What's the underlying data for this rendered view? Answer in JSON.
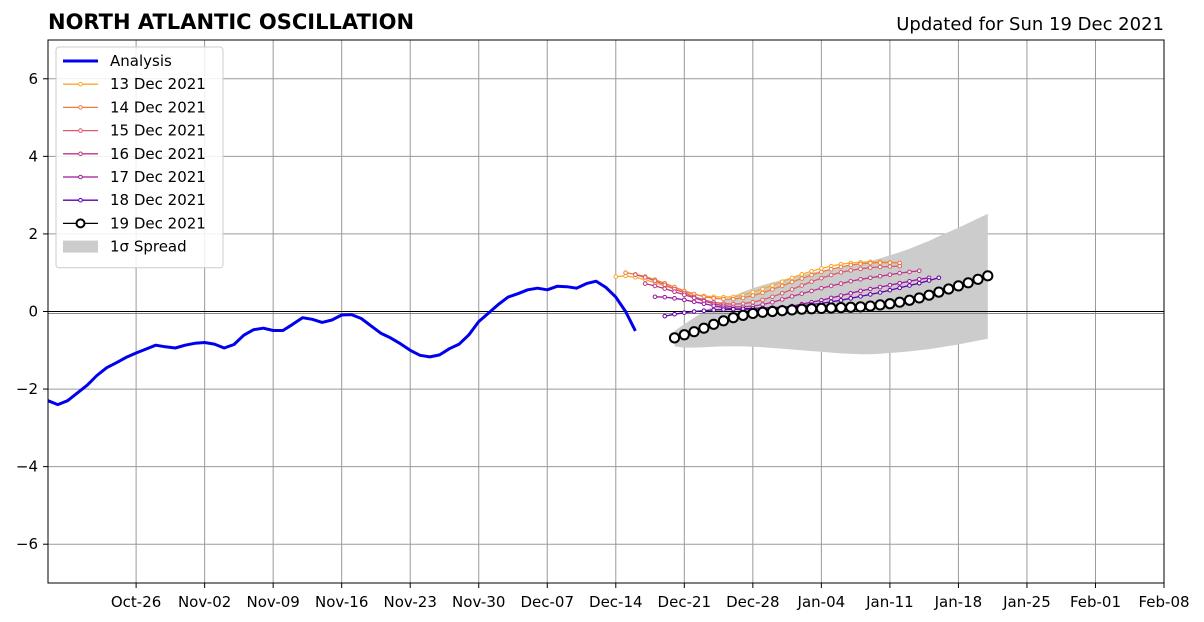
{
  "title": "NORTH ATLANTIC OSCILLATION",
  "updated": "Updated for Sun 19 Dec 2021",
  "chart_data": {
    "type": "line",
    "x_start": "2021-10-17",
    "x_end": "2022-02-08",
    "ylim": [
      -7,
      7
    ],
    "yticks": [
      -6,
      -4,
      -2,
      0,
      2,
      4,
      6
    ],
    "ytick_labels": [
      "−6",
      "−4",
      "−2",
      "0",
      "2",
      "4",
      "6"
    ],
    "xticks": [
      "2021-10-26",
      "2021-11-02",
      "2021-11-09",
      "2021-11-16",
      "2021-11-23",
      "2021-11-30",
      "2021-12-07",
      "2021-12-14",
      "2021-12-21",
      "2021-12-28",
      "2022-01-04",
      "2022-01-11",
      "2022-01-18",
      "2022-01-25",
      "2022-02-01",
      "2022-02-08"
    ],
    "xtick_labels": [
      "Oct-26",
      "Nov-02",
      "Nov-09",
      "Nov-16",
      "Nov-23",
      "Nov-30",
      "Dec-07",
      "Dec-14",
      "Dec-21",
      "Dec-28",
      "Jan-04",
      "Jan-11",
      "Jan-18",
      "Jan-25",
      "Feb-01",
      "Feb-08"
    ],
    "grid": true,
    "legend_position": "top-left",
    "analysis": {
      "name": "Analysis",
      "color": "#0000ee",
      "start_date": "2021-10-17",
      "values": [
        -2.3,
        -2.4,
        -2.3,
        -2.1,
        -1.9,
        -1.65,
        -1.45,
        -1.32,
        -1.18,
        -1.07,
        -0.97,
        -0.87,
        -0.91,
        -0.94,
        -0.87,
        -0.82,
        -0.8,
        -0.84,
        -0.94,
        -0.85,
        -0.61,
        -0.47,
        -0.43,
        -0.49,
        -0.49,
        -0.33,
        -0.16,
        -0.2,
        -0.28,
        -0.22,
        -0.09,
        -0.08,
        -0.18,
        -0.37,
        -0.56,
        -0.68,
        -0.83,
        -1.0,
        -1.13,
        -1.17,
        -1.12,
        -0.96,
        -0.84,
        -0.6,
        -0.26,
        -0.04,
        0.18,
        0.37,
        0.46,
        0.56,
        0.6,
        0.56,
        0.65,
        0.64,
        0.6,
        0.72,
        0.78,
        0.62,
        0.37,
        0.0,
        -0.5
      ]
    },
    "forecasts": [
      {
        "name": "13 Dec 2021",
        "color": "#fca82a",
        "start_date": "2021-12-14",
        "values": [
          0.9,
          0.92,
          0.88,
          0.82,
          0.74,
          0.66,
          0.58,
          0.5,
          0.44,
          0.4,
          0.38,
          0.37,
          0.38,
          0.42,
          0.5,
          0.58,
          0.67,
          0.77,
          0.87,
          0.96,
          1.04,
          1.11,
          1.17,
          1.22,
          1.25,
          1.27,
          1.28,
          1.28,
          1.27,
          1.25
        ]
      },
      {
        "name": "14 Dec 2021",
        "color": "#ef7e3e",
        "start_date": "2021-12-15",
        "values": [
          1.0,
          0.96,
          0.9,
          0.82,
          0.73,
          0.63,
          0.53,
          0.45,
          0.38,
          0.34,
          0.32,
          0.32,
          0.35,
          0.41,
          0.48,
          0.57,
          0.66,
          0.76,
          0.85,
          0.94,
          1.02,
          1.09,
          1.15,
          1.2,
          1.23,
          1.25,
          1.26,
          1.26,
          1.25
        ]
      },
      {
        "name": "15 Dec 2021",
        "color": "#db5b69",
        "start_date": "2021-12-16",
        "values": [
          0.95,
          0.88,
          0.79,
          0.69,
          0.58,
          0.48,
          0.38,
          0.3,
          0.24,
          0.2,
          0.19,
          0.2,
          0.24,
          0.3,
          0.38,
          0.47,
          0.57,
          0.67,
          0.77,
          0.86,
          0.94,
          1.01,
          1.06,
          1.1,
          1.13,
          1.15,
          1.16,
          1.17
        ]
      },
      {
        "name": "16 Dec 2021",
        "color": "#bd3786",
        "start_date": "2021-12-17",
        "values": [
          0.72,
          0.66,
          0.59,
          0.51,
          0.43,
          0.35,
          0.27,
          0.2,
          0.15,
          0.12,
          0.12,
          0.14,
          0.18,
          0.24,
          0.31,
          0.39,
          0.46,
          0.53,
          0.6,
          0.66,
          0.72,
          0.78,
          0.83,
          0.87,
          0.91,
          0.95,
          0.99,
          1.02,
          1.05
        ]
      },
      {
        "name": "17 Dec 2021",
        "color": "#9c179e",
        "start_date": "2021-12-18",
        "values": [
          0.38,
          0.37,
          0.34,
          0.3,
          0.25,
          0.2,
          0.15,
          0.1,
          0.07,
          0.05,
          0.04,
          0.05,
          0.07,
          0.1,
          0.14,
          0.19,
          0.24,
          0.29,
          0.35,
          0.41,
          0.47,
          0.53,
          0.58,
          0.63,
          0.68,
          0.73,
          0.78,
          0.83,
          0.87
        ]
      },
      {
        "name": "18 Dec 2021",
        "color": "#5c01a6",
        "start_date": "2021-12-19",
        "values": [
          -0.12,
          -0.07,
          -0.03,
          0.0,
          0.02,
          0.04,
          0.05,
          0.06,
          0.07,
          0.08,
          0.09,
          0.1,
          0.11,
          0.13,
          0.15,
          0.18,
          0.21,
          0.25,
          0.29,
          0.34,
          0.39,
          0.44,
          0.49,
          0.55,
          0.61,
          0.67,
          0.73,
          0.8,
          0.87
        ]
      },
      {
        "name": "19 Dec 2021",
        "color": "#000000",
        "marker_fill": "#ffffff",
        "start_date": "2021-12-20",
        "values": [
          -0.68,
          -0.6,
          -0.52,
          -0.43,
          -0.33,
          -0.24,
          -0.16,
          -0.1,
          -0.05,
          -0.02,
          0.0,
          0.02,
          0.04,
          0.06,
          0.07,
          0.08,
          0.09,
          0.1,
          0.11,
          0.12,
          0.14,
          0.17,
          0.2,
          0.24,
          0.29,
          0.35,
          0.42,
          0.5,
          0.58,
          0.66,
          0.74,
          0.83,
          0.92
        ]
      }
    ],
    "spread": {
      "name": "1σ Spread",
      "color": "#cccccc",
      "start_date": "2021-12-20",
      "upper": [
        -0.5,
        -0.33,
        -0.16,
        0.0,
        0.14,
        0.27,
        0.4,
        0.51,
        0.6,
        0.68,
        0.75,
        0.82,
        0.88,
        0.94,
        1.0,
        1.05,
        1.1,
        1.15,
        1.2,
        1.25,
        1.3,
        1.37,
        1.45,
        1.53,
        1.62,
        1.72,
        1.82,
        1.94,
        2.05,
        2.16,
        2.28,
        2.4,
        2.52
      ],
      "lower": [
        -0.9,
        -0.93,
        -0.93,
        -0.92,
        -0.91,
        -0.9,
        -0.9,
        -0.9,
        -0.91,
        -0.92,
        -0.94,
        -0.96,
        -0.98,
        -1.0,
        -1.02,
        -1.04,
        -1.06,
        -1.08,
        -1.09,
        -1.1,
        -1.1,
        -1.09,
        -1.07,
        -1.05,
        -1.03,
        -1.0,
        -0.97,
        -0.93,
        -0.89,
        -0.85,
        -0.8,
        -0.75,
        -0.7
      ]
    }
  }
}
